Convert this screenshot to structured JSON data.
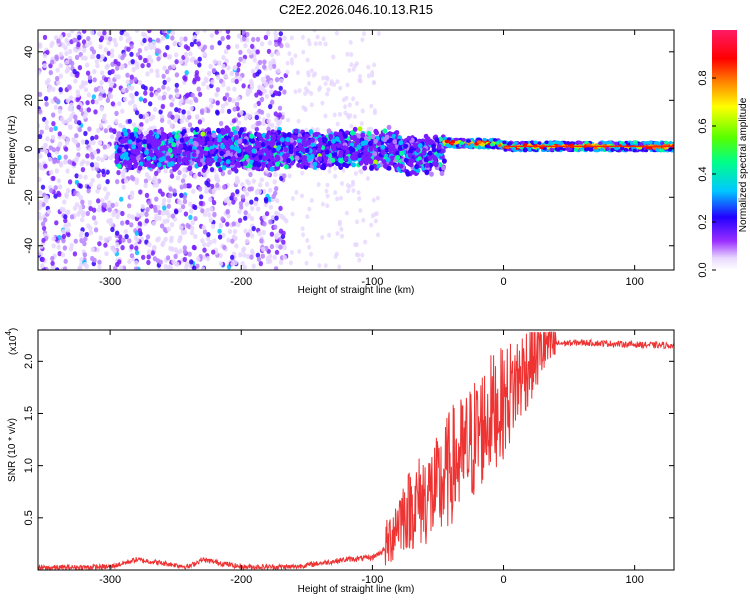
{
  "title": "C2E2.2026.046.10.13.R15",
  "top": {
    "xlabel": "Height of straight line (km)",
    "ylabel": "Frequency (Hz)",
    "xlim": [
      -355,
      130
    ],
    "ylim": [
      -50,
      49
    ],
    "xticks": [
      -300,
      -200,
      -100,
      0,
      100
    ],
    "yticks": [
      -40,
      -20,
      0,
      20,
      40
    ],
    "colorbar": {
      "label": "Normalized spectral amplitude",
      "range": [
        0,
        1
      ],
      "ticks": [
        "0.0",
        "0.2",
        "0.4",
        "0.6",
        "0.8"
      ]
    }
  },
  "bottom": {
    "xlabel": "Height of straight line (km)",
    "ylabel": "SNR (10 * v/v)",
    "scale_label": "(x10",
    "scale_exp": "4",
    "scale_close": ")",
    "xlim": [
      -355,
      130
    ],
    "ylim": [
      0,
      2.3
    ],
    "xticks": [
      -300,
      -200,
      -100,
      0,
      100
    ],
    "yticks": [
      "0.5",
      "1.0",
      "1.5",
      "2.0"
    ],
    "line_color": "#ee3333"
  },
  "chart_data": [
    {
      "type": "heatmap",
      "title": "C2E2.2026.046.10.13.R15",
      "xlabel": "Height of straight line (km)",
      "ylabel": "Frequency (Hz)",
      "xlim": [
        -355,
        130
      ],
      "ylim": [
        -50,
        49
      ],
      "zlabel": "Normalized spectral amplitude",
      "zlim": [
        0,
        1
      ],
      "description_segments": [
        {
          "x_range": [
            -355,
            -165
          ],
          "freq_range": [
            -50,
            49
          ],
          "amplitude": 0.15
        },
        {
          "x_range": [
            -295,
            -45
          ],
          "freq_center": 0,
          "freq_halfwidth": 8,
          "amplitude": 0.35
        },
        {
          "x_range": [
            -45,
            130
          ],
          "freq_center": 1,
          "freq_halfwidth": 2,
          "amplitude": 0.9
        }
      ]
    },
    {
      "type": "line",
      "xlabel": "Height of straight line (km)",
      "ylabel": "SNR (10 * v/v)",
      "y_multiplier": 10000,
      "xlim": [
        -355,
        130
      ],
      "ylim": [
        0,
        2.3
      ],
      "x": [
        -355,
        -300,
        -280,
        -240,
        -230,
        -200,
        -160,
        -120,
        -100,
        -90,
        -80,
        -70,
        -60,
        -50,
        -40,
        -30,
        -20,
        -10,
        0,
        10,
        20,
        30,
        40,
        60,
        80,
        100,
        130
      ],
      "y": [
        0.02,
        0.03,
        0.1,
        0.03,
        0.1,
        0.03,
        0.03,
        0.1,
        0.12,
        0.2,
        0.5,
        0.6,
        0.7,
        0.75,
        1.0,
        1.1,
        1.3,
        1.5,
        1.6,
        1.8,
        2.0,
        2.15,
        2.17,
        2.18,
        2.17,
        2.16,
        2.15
      ],
      "series": [
        {
          "name": "SNR",
          "color": "#ee3333"
        }
      ]
    }
  ]
}
